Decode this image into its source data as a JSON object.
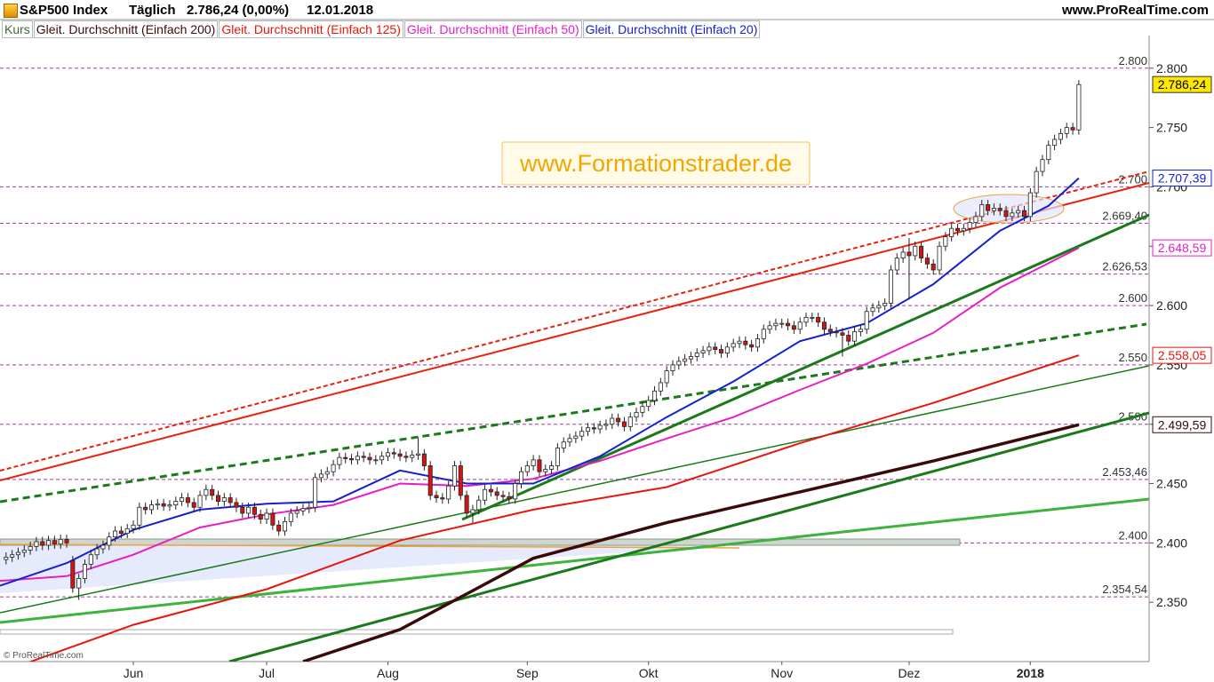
{
  "chart_data": {
    "type": "candlestick",
    "header": {
      "instrument": "S&P500 Index",
      "period": "Täglich",
      "quote": "2.786,24 (0,00%)",
      "date": "12.01.2018",
      "source": "www.ProRealTime.com"
    },
    "watermark": "www.Formationstrader.de",
    "copyright": "© ProRealTime.com",
    "xlim": [
      -1,
      188.6
    ],
    "xticks": [
      {
        "value": 21,
        "label": "Jun"
      },
      {
        "value": 43,
        "label": "Jul"
      },
      {
        "value": 63,
        "label": "Aug"
      },
      {
        "value": 86,
        "label": "Sep"
      },
      {
        "value": 106,
        "label": "Okt"
      },
      {
        "value": 128,
        "label": "Nov"
      },
      {
        "value": 149,
        "label": "Dez"
      },
      {
        "value": 169,
        "label": "2018"
      }
    ],
    "ylim": [
      2300,
      2841
    ],
    "yticks": [
      {
        "value": 2350,
        "label": "2.350"
      },
      {
        "value": 2400,
        "label": "2.400"
      },
      {
        "value": 2450,
        "label": "2.450"
      },
      {
        "value": 2500,
        "label": "2.500"
      },
      {
        "value": 2550,
        "label": "2.550"
      },
      {
        "value": 2600,
        "label": "2.600"
      },
      {
        "value": 2650,
        "label": "2.650"
      },
      {
        "value": 2700,
        "label": "2.700"
      },
      {
        "value": 2750,
        "label": "2.750"
      },
      {
        "value": 2800,
        "label": "2.800"
      }
    ],
    "levels": [
      {
        "value": 2800,
        "label": "2.800"
      },
      {
        "value": 2700,
        "label": "2.700"
      },
      {
        "value": 2669.4,
        "label": "2.669,40"
      },
      {
        "value": 2626.53,
        "label": "2.626,53"
      },
      {
        "value": 2600,
        "label": "2.600"
      },
      {
        "value": 2550,
        "label": "2.550"
      },
      {
        "value": 2500,
        "label": "2.500"
      },
      {
        "value": 2453.46,
        "label": "2.453,46"
      },
      {
        "value": 2400,
        "label": "2.400"
      },
      {
        "value": 2354.54,
        "label": "2.354,54"
      }
    ],
    "price_tag": {
      "value": 2786.24,
      "label": "2.786,24"
    },
    "series": [
      {
        "name": "Kurs",
        "type": "candlestick",
        "up_color": "#ffffff",
        "down_color": "#d41414",
        "open": [
          2386,
          2388,
          2390,
          2392,
          2394,
          2397,
          2401,
          2398,
          2402,
          2399,
          2403,
          2385,
          2362,
          2370,
          2382,
          2390,
          2395,
          2398,
          2405,
          2410,
          2408,
          2412,
          2415,
          2430,
          2428,
          2432,
          2433,
          2431,
          2432,
          2435,
          2438,
          2434,
          2430,
          2440,
          2445,
          2440,
          2435,
          2438,
          2434,
          2430,
          2425,
          2430,
          2424,
          2420,
          2425,
          2415,
          2410,
          2418,
          2425,
          2427,
          2429,
          2430,
          2455,
          2458,
          2460,
          2466,
          2472,
          2471,
          2470,
          2473,
          2472,
          2470,
          2470,
          2473,
          2476,
          2475,
          2473,
          2472,
          2474,
          2475,
          2465,
          2440,
          2438,
          2437,
          2448,
          2465,
          2440,
          2425,
          2428,
          2436,
          2445,
          2443,
          2440,
          2439,
          2437,
          2450,
          2460,
          2465,
          2470,
          2460,
          2462,
          2465,
          2480,
          2485,
          2488,
          2490,
          2494,
          2497,
          2496,
          2499,
          2500,
          2505,
          2502,
          2498,
          2506,
          2510,
          2515,
          2520,
          2528,
          2535,
          2545,
          2550,
          2553,
          2555,
          2557,
          2560,
          2562,
          2565,
          2563,
          2560,
          2565,
          2568,
          2570,
          2567,
          2565,
          2572,
          2580,
          2583,
          2585,
          2585,
          2583,
          2580,
          2586,
          2590,
          2590,
          2586,
          2580,
          2578,
          2577,
          2575,
          2570,
          2578,
          2580,
          2595,
          2598,
          2600,
          2602,
          2630,
          2640,
          2645,
          2642,
          2650,
          2640,
          2635,
          2630,
          2650,
          2658,
          2665,
          2663,
          2665,
          2670,
          2675,
          2685,
          2680,
          2682,
          2680,
          2675,
          2678,
          2680,
          2675,
          2695,
          2713,
          2723,
          2735,
          2740,
          2745,
          2750,
          2748
        ],
        "high": [
          2392,
          2394,
          2396,
          2398,
          2401,
          2405,
          2405,
          2406,
          2406,
          2407,
          2407,
          2389,
          2374,
          2386,
          2394,
          2399,
          2402,
          2409,
          2414,
          2414,
          2416,
          2419,
          2434,
          2434,
          2436,
          2437,
          2437,
          2436,
          2439,
          2442,
          2442,
          2438,
          2444,
          2449,
          2449,
          2444,
          2442,
          2442,
          2438,
          2434,
          2434,
          2434,
          2428,
          2429,
          2429,
          2419,
          2422,
          2429,
          2431,
          2433,
          2434,
          2459,
          2462,
          2464,
          2470,
          2476,
          2476,
          2475,
          2477,
          2477,
          2476,
          2474,
          2477,
          2480,
          2480,
          2479,
          2477,
          2478,
          2489,
          2479,
          2469,
          2444,
          2442,
          2452,
          2469,
          2469,
          2444,
          2432,
          2440,
          2449,
          2449,
          2447,
          2444,
          2443,
          2454,
          2464,
          2469,
          2474,
          2474,
          2466,
          2469,
          2484,
          2489,
          2492,
          2494,
          2498,
          2501,
          2501,
          2503,
          2504,
          2509,
          2509,
          2506,
          2510,
          2514,
          2519,
          2524,
          2532,
          2539,
          2549,
          2554,
          2557,
          2559,
          2561,
          2564,
          2566,
          2569,
          2569,
          2567,
          2569,
          2572,
          2574,
          2574,
          2571,
          2576,
          2584,
          2587,
          2589,
          2589,
          2589,
          2587,
          2590,
          2594,
          2594,
          2594,
          2590,
          2584,
          2582,
          2581,
          2579,
          2582,
          2584,
          2599,
          2602,
          2604,
          2606,
          2634,
          2644,
          2649,
          2657,
          2654,
          2654,
          2644,
          2639,
          2654,
          2662,
          2669,
          2669,
          2669,
          2674,
          2679,
          2689,
          2689,
          2686,
          2686,
          2684,
          2682,
          2684,
          2684,
          2699,
          2717,
          2727,
          2739,
          2744,
          2749,
          2754,
          2754,
          2790
        ],
        "low": [
          2382,
          2384,
          2386,
          2388,
          2390,
          2393,
          2394,
          2394,
          2395,
          2395,
          2396,
          2358,
          2352,
          2366,
          2378,
          2386,
          2391,
          2394,
          2401,
          2404,
          2404,
          2408,
          2411,
          2424,
          2424,
          2428,
          2427,
          2427,
          2428,
          2431,
          2430,
          2426,
          2426,
          2436,
          2436,
          2431,
          2431,
          2430,
          2426,
          2421,
          2421,
          2420,
          2416,
          2416,
          2411,
          2406,
          2406,
          2414,
          2421,
          2423,
          2425,
          2426,
          2451,
          2454,
          2456,
          2462,
          2467,
          2466,
          2466,
          2468,
          2466,
          2466,
          2466,
          2469,
          2471,
          2469,
          2468,
          2468,
          2470,
          2461,
          2436,
          2434,
          2433,
          2433,
          2444,
          2436,
          2421,
          2417,
          2424,
          2432,
          2439,
          2436,
          2435,
          2433,
          2433,
          2446,
          2456,
          2461,
          2456,
          2456,
          2458,
          2461,
          2476,
          2481,
          2484,
          2486,
          2490,
          2492,
          2492,
          2495,
          2496,
          2498,
          2494,
          2494,
          2502,
          2506,
          2511,
          2516,
          2524,
          2531,
          2541,
          2546,
          2549,
          2551,
          2553,
          2556,
          2558,
          2559,
          2556,
          2556,
          2561,
          2564,
          2563,
          2561,
          2561,
          2568,
          2576,
          2579,
          2581,
          2579,
          2576,
          2576,
          2582,
          2586,
          2582,
          2576,
          2574,
          2573,
          2557,
          2566,
          2566,
          2574,
          2576,
          2591,
          2594,
          2596,
          2598,
          2626,
          2636,
          2605,
          2638,
          2636,
          2631,
          2626,
          2626,
          2646,
          2654,
          2659,
          2659,
          2661,
          2666,
          2671,
          2676,
          2676,
          2676,
          2671,
          2671,
          2674,
          2671,
          2671,
          2691,
          2709,
          2719,
          2731,
          2736,
          2741,
          2744,
          2744
        ],
        "close": [
          2388,
          2390,
          2392,
          2394,
          2397,
          2401,
          2398,
          2402,
          2399,
          2403,
          2400,
          2362,
          2370,
          2382,
          2390,
          2395,
          2398,
          2405,
          2410,
          2408,
          2412,
          2415,
          2430,
          2428,
          2432,
          2433,
          2431,
          2432,
          2435,
          2438,
          2434,
          2430,
          2440,
          2445,
          2440,
          2435,
          2438,
          2434,
          2430,
          2425,
          2430,
          2424,
          2420,
          2425,
          2415,
          2410,
          2418,
          2425,
          2427,
          2429,
          2430,
          2455,
          2458,
          2460,
          2466,
          2472,
          2471,
          2470,
          2473,
          2472,
          2470,
          2470,
          2473,
          2476,
          2475,
          2473,
          2472,
          2474,
          2475,
          2465,
          2440,
          2438,
          2437,
          2448,
          2465,
          2440,
          2425,
          2428,
          2436,
          2445,
          2443,
          2440,
          2439,
          2437,
          2450,
          2460,
          2465,
          2470,
          2460,
          2462,
          2465,
          2480,
          2485,
          2488,
          2490,
          2494,
          2497,
          2496,
          2499,
          2500,
          2505,
          2502,
          2498,
          2506,
          2510,
          2515,
          2520,
          2528,
          2535,
          2545,
          2550,
          2553,
          2555,
          2557,
          2560,
          2562,
          2565,
          2563,
          2560,
          2565,
          2568,
          2570,
          2567,
          2565,
          2572,
          2580,
          2583,
          2585,
          2585,
          2583,
          2580,
          2586,
          2590,
          2590,
          2586,
          2580,
          2578,
          2577,
          2575,
          2570,
          2578,
          2580,
          2595,
          2598,
          2600,
          2602,
          2630,
          2640,
          2645,
          2642,
          2650,
          2640,
          2635,
          2630,
          2650,
          2658,
          2665,
          2663,
          2665,
          2670,
          2675,
          2685,
          2680,
          2682,
          2680,
          2675,
          2678,
          2680,
          2675,
          2695,
          2713,
          2723,
          2735,
          2740,
          2745,
          2750,
          2748,
          2786.24
        ]
      },
      {
        "name": "Gleit. Durchschnitt (Einfach 200)",
        "type": "line",
        "color": "#3a0a0a",
        "width": 3.5,
        "x": [
          49,
          65,
          87,
          109,
          131,
          153,
          177
        ],
        "values": [
          2300,
          2327,
          2387,
          2417,
          2443,
          2469,
          2499.59
        ],
        "value_labels": [
          null,
          null,
          null,
          null,
          null,
          null,
          "2.499,59"
        ]
      },
      {
        "name": "Gleit. Durchschnitt (Einfach 125)",
        "type": "line",
        "color": "#e8150c",
        "width": 2,
        "x": [
          3,
          21,
          43,
          65,
          87,
          109,
          131,
          153,
          177
        ],
        "values": [
          2298,
          2331,
          2361,
          2402,
          2428,
          2447,
          2484,
          2518,
          2558.05
        ],
        "value_labels": [
          null,
          null,
          null,
          null,
          null,
          null,
          null,
          null,
          "2.558,05"
        ]
      },
      {
        "name": "Gleit. Durchschnitt (Einfach 50)",
        "type": "line",
        "color": "#e61ec8",
        "width": 2,
        "x": [
          -1,
          10,
          21,
          32,
          43,
          54,
          65,
          76,
          87,
          98,
          109,
          120,
          131,
          142,
          153,
          164,
          177
        ],
        "values": [
          2368,
          2372,
          2390,
          2413,
          2424,
          2432,
          2450,
          2448,
          2454,
          2469,
          2488,
          2506,
          2529,
          2551,
          2577,
          2615,
          2648.59
        ],
        "value_labels": [
          null,
          null,
          null,
          null,
          null,
          null,
          null,
          null,
          null,
          null,
          null,
          null,
          null,
          null,
          null,
          null,
          "2.648,59"
        ]
      },
      {
        "name": "Gleit. Durchschnitt (Einfach 20)",
        "type": "line",
        "color": "#1420d0",
        "width": 2,
        "x": [
          -1,
          10,
          21,
          32,
          43,
          54,
          65,
          76,
          87,
          98,
          109,
          120,
          131,
          142,
          153,
          164,
          172,
          177
        ],
        "values": [
          2364,
          2383,
          2411,
          2428,
          2433,
          2435,
          2461,
          2450,
          2450,
          2473,
          2506,
          2536,
          2570,
          2585,
          2618,
          2663,
          2684,
          2707.39
        ],
        "value_labels": [
          null,
          null,
          null,
          null,
          null,
          null,
          null,
          null,
          null,
          null,
          null,
          null,
          null,
          null,
          null,
          null,
          null,
          "2.707,39"
        ]
      }
    ]
  }
}
